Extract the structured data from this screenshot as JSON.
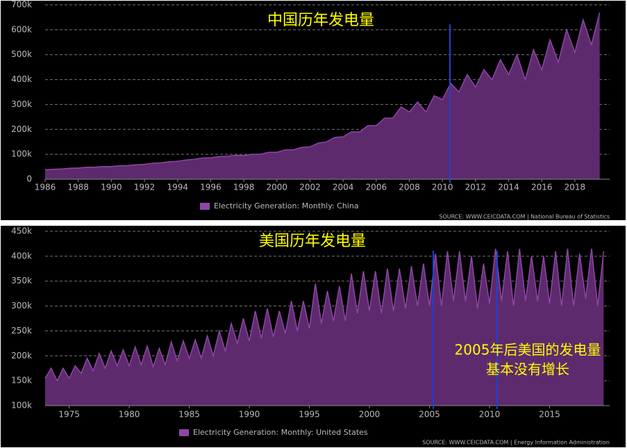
{
  "chart_data": [
    {
      "type": "area",
      "title": "中国历年发电量",
      "legend": "Electricity Generation: Monthly: China",
      "source": "SOURCE: WWW.CEICDATA.COM | National Bureau of Statistics",
      "color": "#5e2a6e",
      "line_color": "#8e46a6",
      "grid": true,
      "xlim": [
        1986,
        2020.1
      ],
      "xticks": [
        1986,
        1988,
        1990,
        1992,
        1994,
        1996,
        1998,
        2000,
        2002,
        2004,
        2006,
        2008,
        2010,
        2012,
        2014,
        2016,
        2018
      ],
      "ylim": [
        0,
        700000
      ],
      "yticks": [
        0,
        {
          "value": 100000,
          "label": "100k"
        },
        {
          "value": 200000,
          "label": "200k"
        },
        {
          "value": 300000,
          "label": "300k"
        },
        {
          "value": 400000,
          "label": "400k"
        },
        {
          "value": 500000,
          "label": "500k"
        },
        {
          "value": 600000,
          "label": "600k"
        },
        {
          "value": 700000,
          "label": "700k"
        }
      ],
      "x": [
        1986,
        1986.5,
        1987,
        1987.5,
        1988,
        1988.5,
        1989,
        1989.5,
        1990,
        1990.5,
        1991,
        1991.5,
        1992,
        1992.5,
        1993,
        1993.5,
        1994,
        1994.5,
        1995,
        1995.5,
        1996,
        1996.5,
        1997,
        1997.5,
        1998,
        1998.5,
        1999,
        1999.5,
        2000,
        2000.5,
        2001,
        2001.5,
        2002,
        2002.5,
        2003,
        2003.5,
        2004,
        2004.5,
        2005,
        2005.5,
        2006,
        2006.5,
        2007,
        2007.5,
        2008,
        2008.5,
        2009,
        2009.5,
        2010,
        2010.5,
        2011,
        2011.5,
        2012,
        2012.5,
        2013,
        2013.5,
        2014,
        2014.5,
        2015,
        2015.5,
        2016,
        2016.5,
        2017,
        2017.5,
        2018,
        2018.5,
        2019,
        2019.5
      ],
      "values": [
        38000,
        40000,
        41000,
        44000,
        45000,
        48000,
        48000,
        51000,
        51000,
        54000,
        55000,
        58000,
        60000,
        64000,
        66000,
        70000,
        72000,
        77000,
        80000,
        85000,
        86000,
        91000,
        92000,
        96000,
        95000,
        100000,
        100000,
        108000,
        108000,
        118000,
        118000,
        128000,
        130000,
        145000,
        150000,
        168000,
        170000,
        190000,
        190000,
        215000,
        215000,
        245000,
        245000,
        290000,
        270000,
        310000,
        270000,
        335000,
        320000,
        385000,
        350000,
        420000,
        370000,
        440000,
        400000,
        480000,
        420000,
        500000,
        400000,
        520000,
        440000,
        560000,
        470000,
        600000,
        510000,
        640000,
        540000,
        670000
      ]
    },
    {
      "type": "area",
      "title": "美国历年发电量",
      "annotation": [
        "2005年后美国的发电量",
        "基本没有增长"
      ],
      "legend": "Electricity Generation: Monthly: United States",
      "source": "SOURCE: WWW.CEICDATA.COM | Energy Information Administration",
      "color": "#5e2a6e",
      "line_color": "#8e46a6",
      "grid": true,
      "xlim": [
        1973,
        2020
      ],
      "xticks": [
        1975,
        1980,
        1985,
        1990,
        1995,
        2000,
        2005,
        2010,
        2015
      ],
      "ylim": [
        100000,
        450000
      ],
      "yticks": [
        {
          "value": 100000,
          "label": "100k"
        },
        {
          "value": 150000,
          "label": "150k"
        },
        {
          "value": 200000,
          "label": "200k"
        },
        {
          "value": 250000,
          "label": "250k"
        },
        {
          "value": 300000,
          "label": "300k"
        },
        {
          "value": 350000,
          "label": "350k"
        },
        {
          "value": 400000,
          "label": "400k"
        },
        {
          "value": 450000,
          "label": "450k"
        }
      ],
      "x": [
        1973,
        1973.5,
        1974,
        1974.5,
        1975,
        1975.5,
        1976,
        1976.5,
        1977,
        1977.5,
        1978,
        1978.5,
        1979,
        1979.5,
        1980,
        1980.5,
        1981,
        1981.5,
        1982,
        1982.5,
        1983,
        1983.5,
        1984,
        1984.5,
        1985,
        1985.5,
        1986,
        1986.5,
        1987,
        1987.5,
        1988,
        1988.5,
        1989,
        1989.5,
        1990,
        1990.5,
        1991,
        1991.5,
        1992,
        1992.5,
        1993,
        1993.5,
        1994,
        1994.5,
        1995,
        1995.5,
        1996,
        1996.5,
        1997,
        1997.5,
        1998,
        1998.5,
        1999,
        1999.5,
        2000,
        2000.5,
        2001,
        2001.5,
        2002,
        2002.5,
        2003,
        2003.5,
        2004,
        2004.5,
        2005,
        2005.5,
        2006,
        2006.5,
        2007,
        2007.5,
        2008,
        2008.5,
        2009,
        2009.5,
        2010,
        2010.5,
        2011,
        2011.5,
        2012,
        2012.5,
        2013,
        2013.5,
        2014,
        2014.5,
        2015,
        2015.5,
        2016,
        2016.5,
        2017,
        2017.5,
        2018,
        2018.5,
        2019,
        2019.5
      ],
      "values": [
        155000,
        175000,
        150000,
        175000,
        155000,
        180000,
        165000,
        195000,
        170000,
        205000,
        175000,
        210000,
        180000,
        212000,
        180000,
        218000,
        182000,
        220000,
        178000,
        215000,
        182000,
        228000,
        190000,
        230000,
        195000,
        232000,
        195000,
        240000,
        200000,
        250000,
        210000,
        265000,
        225000,
        275000,
        230000,
        290000,
        235000,
        295000,
        238000,
        290000,
        245000,
        310000,
        250000,
        310000,
        255000,
        345000,
        265000,
        330000,
        270000,
        340000,
        270000,
        365000,
        285000,
        370000,
        290000,
        370000,
        285000,
        375000,
        290000,
        375000,
        295000,
        380000,
        300000,
        385000,
        300000,
        405000,
        300000,
        410000,
        310000,
        410000,
        310000,
        400000,
        295000,
        385000,
        305000,
        415000,
        310000,
        410000,
        300000,
        415000,
        310000,
        400000,
        310000,
        400000,
        305000,
        410000,
        300000,
        415000,
        300000,
        405000,
        315000,
        415000,
        300000,
        410000
      ]
    }
  ]
}
